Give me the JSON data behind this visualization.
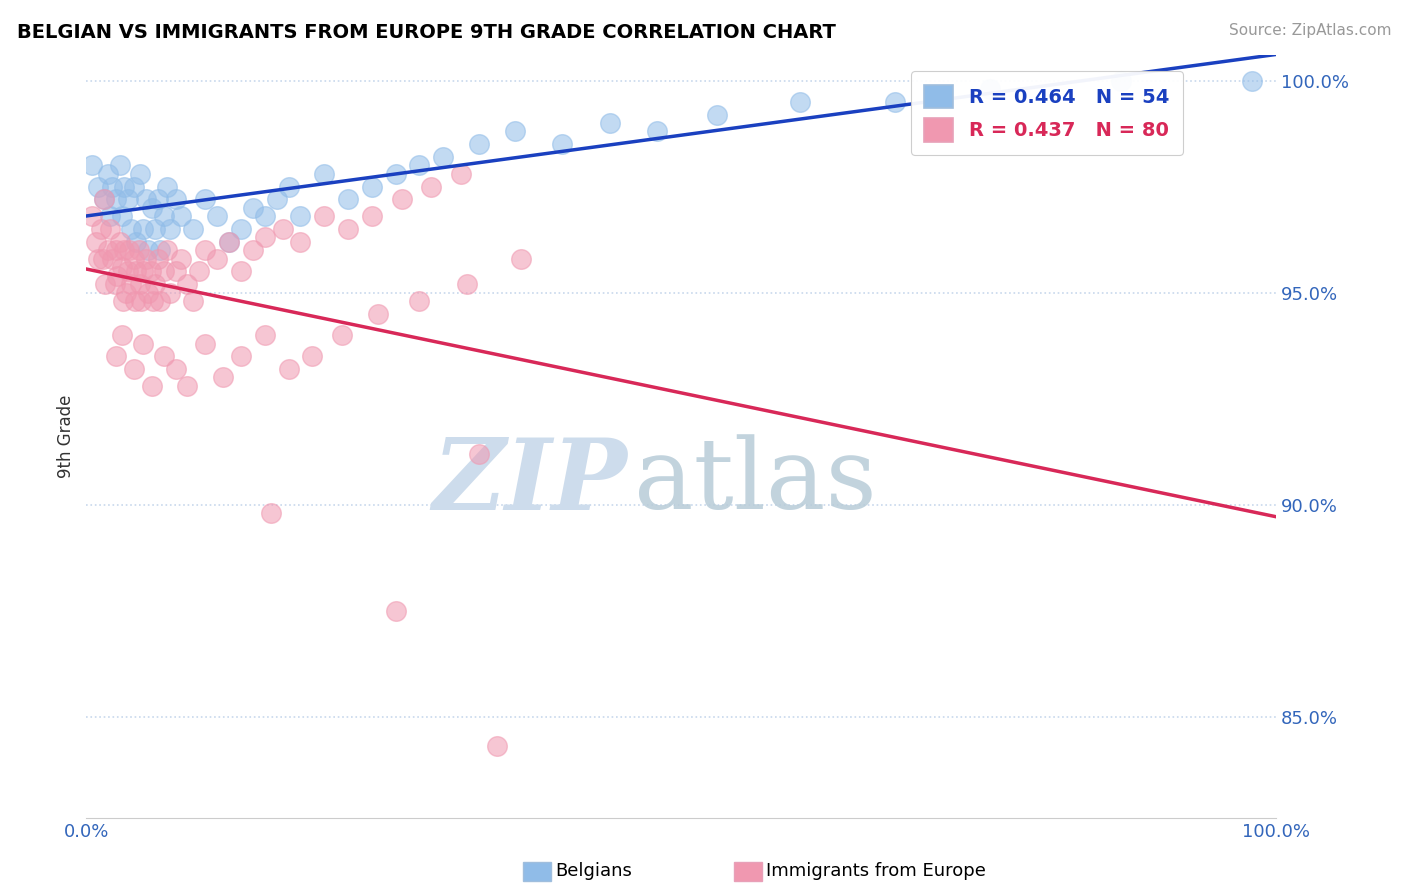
{
  "title": "BELGIAN VS IMMIGRANTS FROM EUROPE 9TH GRADE CORRELATION CHART",
  "source_text": "Source: ZipAtlas.com",
  "ylabel": "9th Grade",
  "xlim": [
    0.0,
    1.0
  ],
  "ylim": [
    0.826,
    1.006
  ],
  "x_ticks": [
    0.0,
    1.0
  ],
  "x_tick_labels": [
    "0.0%",
    "100.0%"
  ],
  "y_ticks": [
    0.85,
    0.9,
    0.95,
    1.0
  ],
  "y_tick_labels": [
    "85.0%",
    "90.0%",
    "95.0%",
    "100.0%"
  ],
  "r_belgian": 0.464,
  "n_belgian": 54,
  "r_immigrants": 0.437,
  "n_immigrants": 80,
  "belgian_color": "#90bce8",
  "immigrant_color": "#f098b0",
  "belgian_line_color": "#1a40c0",
  "immigrant_line_color": "#d82858",
  "bg_color": "#ffffff",
  "grid_color": "#c8d8ec",
  "watermark_zip_color": "#cddcec",
  "watermark_atlas_color": "#b8ccd8",
  "legend_color_b": "#1a40c0",
  "legend_color_i": "#d82858",
  "belgians_x": [
    0.005,
    0.01,
    0.015,
    0.018,
    0.02,
    0.022,
    0.025,
    0.028,
    0.03,
    0.032,
    0.035,
    0.038,
    0.04,
    0.042,
    0.045,
    0.048,
    0.05,
    0.052,
    0.055,
    0.058,
    0.06,
    0.062,
    0.065,
    0.068,
    0.07,
    0.075,
    0.08,
    0.09,
    0.1,
    0.11,
    0.12,
    0.13,
    0.14,
    0.15,
    0.16,
    0.17,
    0.18,
    0.2,
    0.22,
    0.24,
    0.26,
    0.28,
    0.3,
    0.33,
    0.36,
    0.4,
    0.44,
    0.48,
    0.53,
    0.6,
    0.68,
    0.76,
    0.87,
    0.98
  ],
  "belgians_y": [
    0.98,
    0.975,
    0.972,
    0.978,
    0.968,
    0.975,
    0.972,
    0.98,
    0.968,
    0.975,
    0.972,
    0.965,
    0.975,
    0.962,
    0.978,
    0.965,
    0.972,
    0.96,
    0.97,
    0.965,
    0.972,
    0.96,
    0.968,
    0.975,
    0.965,
    0.972,
    0.968,
    0.965,
    0.972,
    0.968,
    0.962,
    0.965,
    0.97,
    0.968,
    0.972,
    0.975,
    0.968,
    0.978,
    0.972,
    0.975,
    0.978,
    0.98,
    0.982,
    0.985,
    0.988,
    0.985,
    0.99,
    0.988,
    0.992,
    0.995,
    0.995,
    0.998,
    1.0,
    1.0
  ],
  "immigrants_x": [
    0.005,
    0.008,
    0.01,
    0.012,
    0.014,
    0.015,
    0.016,
    0.018,
    0.02,
    0.022,
    0.024,
    0.025,
    0.026,
    0.028,
    0.03,
    0.031,
    0.032,
    0.033,
    0.035,
    0.036,
    0.038,
    0.04,
    0.041,
    0.042,
    0.044,
    0.045,
    0.046,
    0.048,
    0.05,
    0.052,
    0.054,
    0.056,
    0.058,
    0.06,
    0.062,
    0.065,
    0.068,
    0.07,
    0.075,
    0.08,
    0.085,
    0.09,
    0.095,
    0.1,
    0.11,
    0.12,
    0.13,
    0.14,
    0.15,
    0.165,
    0.18,
    0.2,
    0.22,
    0.24,
    0.265,
    0.29,
    0.315,
    0.025,
    0.03,
    0.04,
    0.048,
    0.055,
    0.065,
    0.075,
    0.085,
    0.1,
    0.115,
    0.13,
    0.15,
    0.17,
    0.19,
    0.215,
    0.245,
    0.28,
    0.32,
    0.365,
    0.33,
    0.155,
    0.26,
    0.345
  ],
  "immigrants_y": [
    0.968,
    0.962,
    0.958,
    0.965,
    0.958,
    0.972,
    0.952,
    0.96,
    0.965,
    0.958,
    0.952,
    0.96,
    0.954,
    0.962,
    0.956,
    0.948,
    0.96,
    0.95,
    0.955,
    0.96,
    0.952,
    0.958,
    0.948,
    0.955,
    0.96,
    0.952,
    0.948,
    0.955,
    0.958,
    0.95,
    0.955,
    0.948,
    0.952,
    0.958,
    0.948,
    0.955,
    0.96,
    0.95,
    0.955,
    0.958,
    0.952,
    0.948,
    0.955,
    0.96,
    0.958,
    0.962,
    0.955,
    0.96,
    0.963,
    0.965,
    0.962,
    0.968,
    0.965,
    0.968,
    0.972,
    0.975,
    0.978,
    0.935,
    0.94,
    0.932,
    0.938,
    0.928,
    0.935,
    0.932,
    0.928,
    0.938,
    0.93,
    0.935,
    0.94,
    0.932,
    0.935,
    0.94,
    0.945,
    0.948,
    0.952,
    0.958,
    0.912,
    0.898,
    0.875,
    0.843
  ]
}
